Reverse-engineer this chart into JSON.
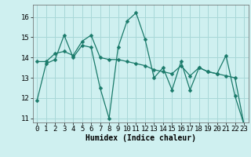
{
  "title": "",
  "xlabel": "Humidex (Indice chaleur)",
  "bg_color": "#cff0f0",
  "grid_color": "#a8d8d8",
  "line_color": "#1a7a6a",
  "series1_x": [
    0,
    1,
    2,
    3,
    4,
    5,
    6,
    7,
    8,
    9,
    10,
    11,
    12,
    13,
    14,
    15,
    16,
    17,
    18,
    19,
    20,
    21,
    22,
    23
  ],
  "series1_y": [
    11.9,
    13.7,
    13.9,
    15.1,
    14.0,
    14.6,
    14.5,
    12.5,
    11.0,
    14.5,
    15.8,
    16.2,
    14.9,
    13.0,
    13.5,
    12.4,
    13.8,
    12.4,
    13.5,
    13.3,
    13.2,
    14.1,
    12.1,
    10.7
  ],
  "series2_x": [
    0,
    1,
    2,
    3,
    4,
    5,
    6,
    7,
    8,
    9,
    10,
    11,
    12,
    13,
    14,
    15,
    16,
    17,
    18,
    19,
    20,
    21,
    22,
    23
  ],
  "series2_y": [
    13.8,
    13.8,
    14.2,
    14.3,
    14.1,
    14.8,
    15.1,
    14.0,
    13.9,
    13.9,
    13.8,
    13.7,
    13.6,
    13.4,
    13.3,
    13.2,
    13.6,
    13.1,
    13.5,
    13.3,
    13.2,
    13.1,
    13.0,
    10.7
  ],
  "xlim": [
    -0.5,
    23.5
  ],
  "ylim": [
    10.8,
    16.6
  ],
  "yticks": [
    11,
    12,
    13,
    14,
    15,
    16
  ],
  "xticks": [
    0,
    1,
    2,
    3,
    4,
    5,
    6,
    7,
    8,
    9,
    10,
    11,
    12,
    13,
    14,
    15,
    16,
    17,
    18,
    19,
    20,
    21,
    22,
    23
  ],
  "xlabel_fontsize": 7,
  "tick_fontsize": 6.5,
  "marker_size": 2.5,
  "line_width": 0.9
}
